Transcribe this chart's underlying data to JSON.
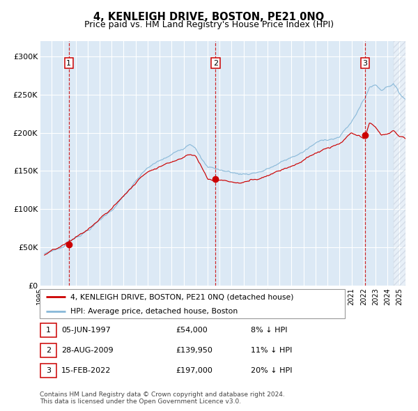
{
  "title": "4, KENLEIGH DRIVE, BOSTON, PE21 0NQ",
  "subtitle": "Price paid vs. HM Land Registry's House Price Index (HPI)",
  "ylim": [
    0,
    320000
  ],
  "yticks": [
    0,
    50000,
    100000,
    150000,
    200000,
    250000,
    300000
  ],
  "ytick_labels": [
    "£0",
    "£50K",
    "£100K",
    "£150K",
    "£200K",
    "£250K",
    "£300K"
  ],
  "x_start_year": 1995.4,
  "x_end_year": 2025.5,
  "xtick_years": [
    1995,
    1996,
    1997,
    1998,
    1999,
    2000,
    2001,
    2002,
    2003,
    2004,
    2005,
    2006,
    2007,
    2008,
    2009,
    2010,
    2011,
    2012,
    2013,
    2014,
    2015,
    2016,
    2017,
    2018,
    2019,
    2020,
    2021,
    2022,
    2023,
    2024,
    2025
  ],
  "sale_color": "#cc0000",
  "hpi_color": "#88b8d8",
  "bg_color": "#dce9f5",
  "grid_color": "#ffffff",
  "sale_points": [
    {
      "year": 1997.43,
      "value": 54000,
      "label": "1"
    },
    {
      "year": 2009.66,
      "value": 139950,
      "label": "2"
    },
    {
      "year": 2022.12,
      "value": 197000,
      "label": "3"
    }
  ],
  "legend_sale_label": "4, KENLEIGH DRIVE, BOSTON, PE21 0NQ (detached house)",
  "legend_hpi_label": "HPI: Average price, detached house, Boston",
  "table_rows": [
    {
      "num": "1",
      "date": "05-JUN-1997",
      "price": "£54,000",
      "pct": "8% ↓ HPI"
    },
    {
      "num": "2",
      "date": "28-AUG-2009",
      "price": "£139,950",
      "pct": "11% ↓ HPI"
    },
    {
      "num": "3",
      "date": "15-FEB-2022",
      "price": "£197,000",
      "pct": "20% ↓ HPI"
    }
  ],
  "footnote": "Contains HM Land Registry data © Crown copyright and database right 2024.\nThis data is licensed under the Open Government Licence v3.0.",
  "title_fontsize": 10.5,
  "subtitle_fontsize": 9,
  "axis_fontsize": 8
}
